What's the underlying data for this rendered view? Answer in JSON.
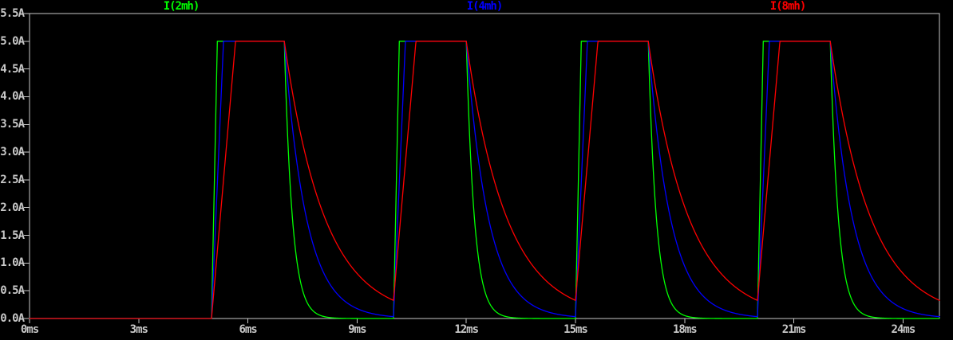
{
  "window": {
    "background": "#000000"
  },
  "chart_data": {
    "type": "line",
    "title": "",
    "grid": false,
    "legend_position": "top",
    "plot_background": "#000000",
    "axis_color": "#c8c8c8",
    "x_axis": {
      "unit": "ms",
      "range_ms": [
        0,
        25
      ],
      "tick_values_ms": [
        0,
        3,
        6,
        9,
        12,
        15,
        18,
        21,
        24
      ],
      "tick_labels": [
        "0ms",
        "3ms",
        "6ms",
        "9ms",
        "12ms",
        "15ms",
        "18ms",
        "21ms",
        "24ms"
      ]
    },
    "y_axis": {
      "unit": "A",
      "range_A": [
        0,
        5.5
      ],
      "tick_values_A": [
        0,
        0.5,
        1,
        1.5,
        2,
        2.5,
        3,
        3.5,
        4,
        4.5,
        5,
        5.5
      ],
      "tick_labels": [
        "0.0A",
        "0.5A",
        "1.0A",
        "1.5A",
        "2.0A",
        "2.5A",
        "3.0A",
        "3.5A",
        "4.0A",
        "4.5A",
        "5.0A",
        "5.5A"
      ]
    },
    "series": [
      {
        "name": "I(2mh)",
        "color": "#00ff00",
        "rise_time_ms": 0.16,
        "decay_tau_ms": 0.22
      },
      {
        "name": "I(4mh)",
        "color": "#0000ff",
        "rise_time_ms": 0.33,
        "decay_tau_ms": 0.6
      },
      {
        "name": "I(8mh)",
        "color": "#ff0000",
        "rise_time_ms": 0.66,
        "decay_tau_ms": 1.1
      }
    ],
    "pulse_train": {
      "start_times_ms": [
        5,
        10,
        15,
        20
      ],
      "on_width_ms": 2,
      "amplitude_A": 5,
      "baseline_A": 0
    }
  }
}
